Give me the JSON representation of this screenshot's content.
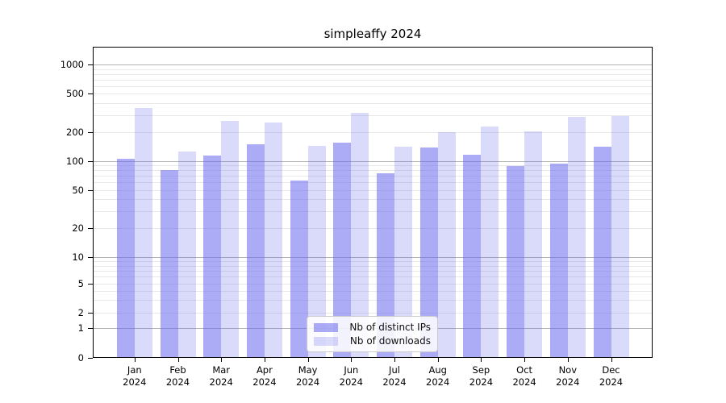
{
  "title": "simpleaffy 2024",
  "chart_data": {
    "type": "bar",
    "title": "simpleaffy 2024",
    "categories": [
      "Jan 2024",
      "Feb 2024",
      "Mar 2024",
      "Apr 2024",
      "May 2024",
      "Jun 2024",
      "Jul 2024",
      "Aug 2024",
      "Sep 2024",
      "Oct 2024",
      "Nov 2024",
      "Dec 2024"
    ],
    "series": [
      {
        "name": "Nb of distinct IPs",
        "color": "rgba(102,102,238,0.55)",
        "color_hex_on_white": "#abABf3",
        "values": [
          105,
          80,
          114,
          150,
          63,
          155,
          75,
          138,
          116,
          89,
          94,
          142
        ]
      },
      {
        "name": "Nb of downloads",
        "color": "rgba(102,102,238,0.24)",
        "color_hex_on_white": "#dadaf9",
        "values": [
          355,
          125,
          260,
          250,
          143,
          315,
          142,
          200,
          230,
          202,
          285,
          295
        ]
      }
    ],
    "xlabel": "",
    "ylabel": "",
    "yscale": "symlog",
    "ylim": [
      0,
      1500
    ],
    "ytick_labels": [
      "0",
      "1",
      "2",
      "5",
      "10",
      "20",
      "50",
      "100",
      "200",
      "500",
      "1000"
    ],
    "ytick_values": [
      0,
      1,
      2,
      5,
      10,
      20,
      50,
      100,
      200,
      500,
      1000
    ],
    "minor_grid_values": [
      2,
      3,
      4,
      5,
      6,
      7,
      8,
      9,
      20,
      30,
      40,
      50,
      60,
      70,
      80,
      90,
      200,
      300,
      400,
      500,
      600,
      700,
      800,
      900
    ],
    "major_grid_values": [
      1,
      10,
      100,
      1000
    ],
    "grid": "horizontal, major + minor",
    "legend_position": "lower center",
    "colors": {
      "bar_base": "#6666ee",
      "major_grid": "#b3b3b3",
      "minor_grid": "#e8e8e8",
      "axis": "#000000",
      "background": "#ffffff"
    }
  }
}
